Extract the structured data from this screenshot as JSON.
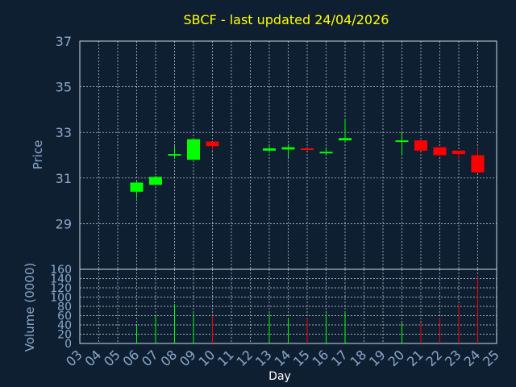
{
  "chart_data": {
    "type": "candlestick",
    "title": "SBCF - last updated 24/04/2026",
    "price_panel": {
      "ylabel": "Price",
      "ylim": [
        27,
        37
      ],
      "yticks": [
        29,
        31,
        33,
        35,
        37
      ]
    },
    "volume_panel": {
      "ylabel": "Volume (0000)",
      "ylim": [
        0,
        160
      ],
      "yticks": [
        0,
        20,
        40,
        60,
        80,
        100,
        120,
        140,
        160
      ]
    },
    "xlabel": "Day",
    "x_ticks": [
      "03",
      "04",
      "05",
      "06",
      "07",
      "08",
      "09",
      "10",
      "11",
      "12",
      "13",
      "14",
      "15",
      "16",
      "17",
      "18",
      "19",
      "20",
      "21",
      "22",
      "23",
      "24",
      "25"
    ],
    "candles": [
      {
        "day": "06",
        "open": 30.4,
        "high": 30.9,
        "low": 30.1,
        "close": 30.8,
        "volume": 40
      },
      {
        "day": "07",
        "open": 30.7,
        "high": 31.1,
        "low": 30.7,
        "close": 31.05,
        "volume": 62
      },
      {
        "day": "08",
        "open": 32.0,
        "high": 32.4,
        "low": 31.9,
        "close": 32.05,
        "volume": 85
      },
      {
        "day": "09",
        "open": 31.8,
        "high": 32.7,
        "low": 31.8,
        "close": 32.7,
        "volume": 65
      },
      {
        "day": "10",
        "open": 32.6,
        "high": 32.6,
        "low": 32.2,
        "close": 32.4,
        "volume": 60
      },
      {
        "day": "13",
        "open": 32.2,
        "high": 32.4,
        "low": 32.1,
        "close": 32.3,
        "volume": 65
      },
      {
        "day": "14",
        "open": 32.25,
        "high": 32.5,
        "low": 31.9,
        "close": 32.35,
        "volume": 55
      },
      {
        "day": "15",
        "open": 32.3,
        "high": 32.3,
        "low": 32.2,
        "close": 32.25,
        "volume": 55
      },
      {
        "day": "16",
        "open": 32.1,
        "high": 32.35,
        "low": 32.05,
        "close": 32.15,
        "volume": 65
      },
      {
        "day": "17",
        "open": 32.65,
        "high": 33.6,
        "low": 32.6,
        "close": 32.75,
        "volume": 68
      },
      {
        "day": "20",
        "open": 32.65,
        "high": 33.0,
        "low": 32.0,
        "close": 32.65,
        "volume": 45
      },
      {
        "day": "21",
        "open": 32.65,
        "high": 32.65,
        "low": 32.2,
        "close": 32.2,
        "volume": 45
      },
      {
        "day": "22",
        "open": 32.35,
        "high": 32.35,
        "low": 31.95,
        "close": 32.0,
        "volume": 55
      },
      {
        "day": "23",
        "open": 32.2,
        "high": 32.2,
        "low": 31.8,
        "close": 32.05,
        "volume": 85
      },
      {
        "day": "24",
        "open": 32.0,
        "high": 32.3,
        "low": 31.2,
        "close": 31.25,
        "volume": 145
      }
    ],
    "colors": {
      "background": "#0f1f32",
      "up": "#00ff00",
      "down": "#ff0000",
      "title": "#ffff00",
      "axis_text": "#8aa8c8",
      "grid": "#cfd8e3"
    },
    "grid": true
  }
}
